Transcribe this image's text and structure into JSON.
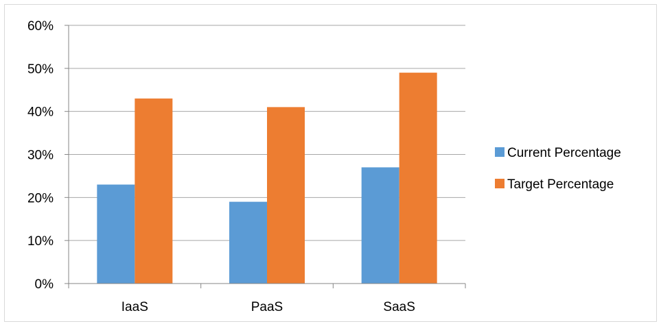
{
  "chart_data": {
    "type": "bar",
    "categories": [
      "IaaS",
      "PaaS",
      "SaaS"
    ],
    "series": [
      {
        "name": "Current Percentage",
        "values": [
          23,
          19,
          27
        ],
        "color": "#5b9bd5"
      },
      {
        "name": "Target Percentage",
        "values": [
          43,
          41,
          49
        ],
        "color": "#ed7d31"
      }
    ],
    "ylim": [
      0,
      60
    ],
    "yticks": [
      0,
      10,
      20,
      30,
      40,
      50,
      60
    ],
    "ytick_labels": [
      "0%",
      "10%",
      "20%",
      "30%",
      "40%",
      "50%",
      "60%"
    ],
    "grid": true,
    "legend_position": "right"
  }
}
